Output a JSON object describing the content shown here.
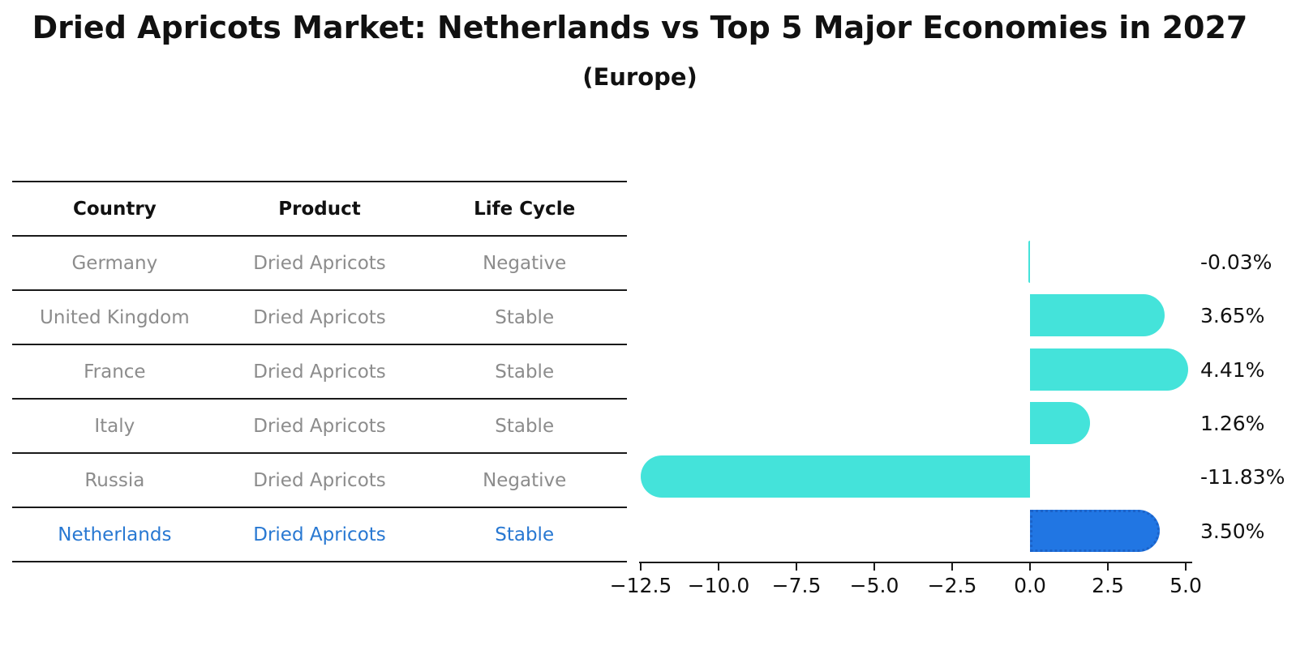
{
  "title": "Dried Apricots Market: Netherlands vs Top 5 Major Economies in 2027",
  "subtitle": "(Europe)",
  "colors": {
    "bar": "#44e3da",
    "highlight_bar": "#2176e3",
    "highlight_border": "#1b62c8",
    "row_text": "#8c8c8c",
    "highlight_text": "#2878d2",
    "header_text": "#111111",
    "line": "#1a1a1a"
  },
  "table": {
    "headers": [
      "Country",
      "Product",
      "Life Cycle"
    ],
    "rows": [
      {
        "country": "Germany",
        "product": "Dried Apricots",
        "life_cycle": "Negative",
        "highlight": false
      },
      {
        "country": "United Kingdom",
        "product": "Dried Apricots",
        "life_cycle": "Stable",
        "highlight": false
      },
      {
        "country": "France",
        "product": "Dried Apricots",
        "life_cycle": "Stable",
        "highlight": false
      },
      {
        "country": "Italy",
        "product": "Dried Apricots",
        "life_cycle": "Stable",
        "highlight": false
      },
      {
        "country": "Russia",
        "product": "Dried Apricots",
        "life_cycle": "Negative",
        "highlight": false
      },
      {
        "country": "Netherlands",
        "product": "Dried Apricots",
        "life_cycle": "Stable",
        "highlight": true
      }
    ]
  },
  "chart_data": {
    "type": "bar",
    "orientation": "horizontal",
    "title": "Dried Apricots Market: Netherlands vs Top 5 Major Economies in 2027 (Europe)",
    "categories": [
      "Germany",
      "United Kingdom",
      "France",
      "Italy",
      "Russia",
      "Netherlands"
    ],
    "values": [
      -0.03,
      3.65,
      4.41,
      1.26,
      -11.83,
      3.5
    ],
    "value_labels": [
      "-0.03%",
      "3.65%",
      "4.41%",
      "1.26%",
      "-11.83%",
      "3.50%"
    ],
    "highlight_index": 5,
    "xlabel": "",
    "ylabel": "",
    "xlim": [
      -12.55,
      5.2
    ],
    "x_tick_values": [
      -12.5,
      -10.0,
      -7.5,
      -5.0,
      -2.5,
      0.0,
      2.5,
      5.0
    ],
    "x_tick_labels": [
      "−12.5",
      "−10.0",
      "−7.5",
      "−5.0",
      "−2.5",
      "0.0",
      "2.5",
      "5.0"
    ],
    "grid": false,
    "legend": false,
    "bar_style": "rounded-pill, flat at zero line; highlighted bar has dotted border"
  }
}
